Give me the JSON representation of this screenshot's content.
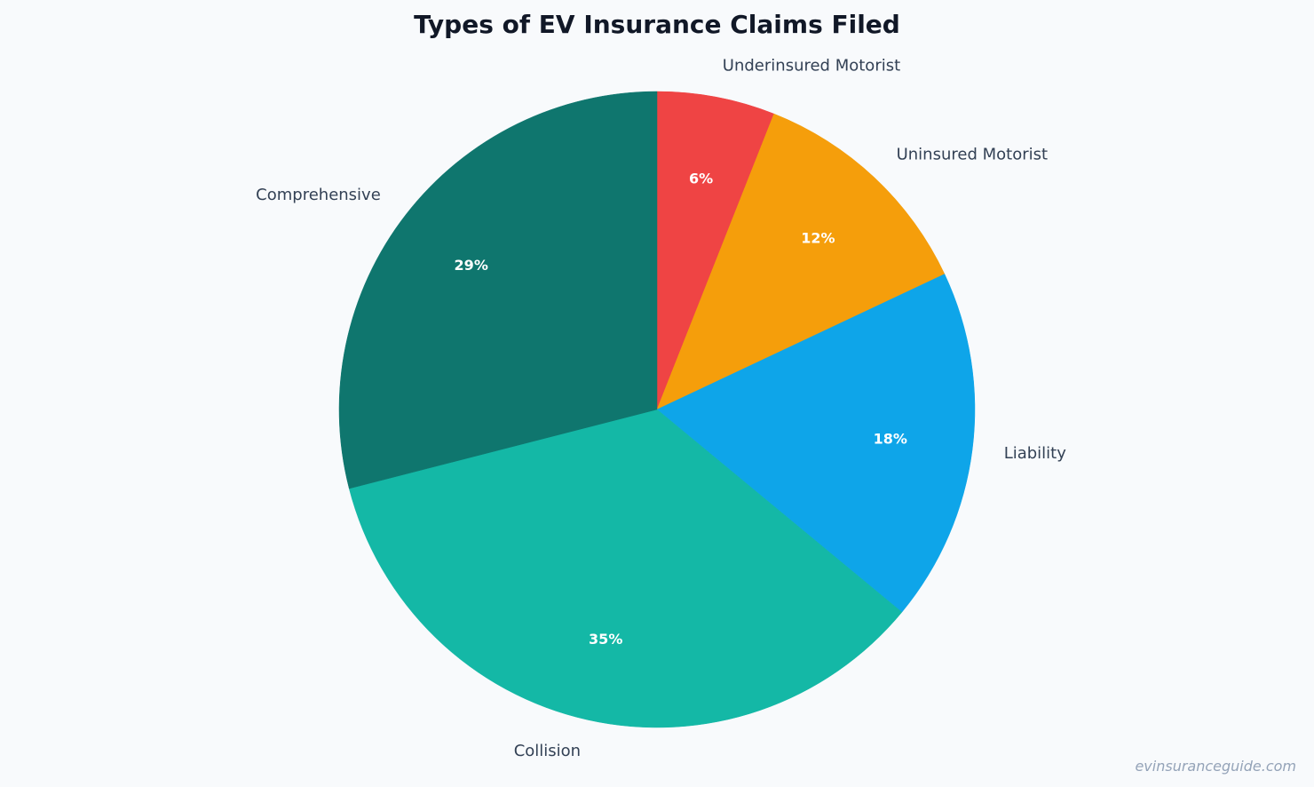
{
  "chart_data": {
    "type": "pie",
    "title": "Types of EV Insurance Claims Filed",
    "start": "top, clockwise",
    "slices": [
      {
        "label": "Underinsured Motorist",
        "value": 6,
        "pct_label": "6%",
        "color": "#ef4444"
      },
      {
        "label": "Uninsured Motorist",
        "value": 12,
        "pct_label": "12%",
        "color": "#f59e0b"
      },
      {
        "label": "Liability",
        "value": 18,
        "pct_label": "18%",
        "color": "#0ea5e9"
      },
      {
        "label": "Collision",
        "value": 35,
        "pct_label": "35%",
        "color": "#14b8a6"
      },
      {
        "label": "Comprehensive",
        "value": 29,
        "pct_label": "29%",
        "color": "#0f766e"
      }
    ]
  },
  "watermark": "evinsuranceguide.com"
}
